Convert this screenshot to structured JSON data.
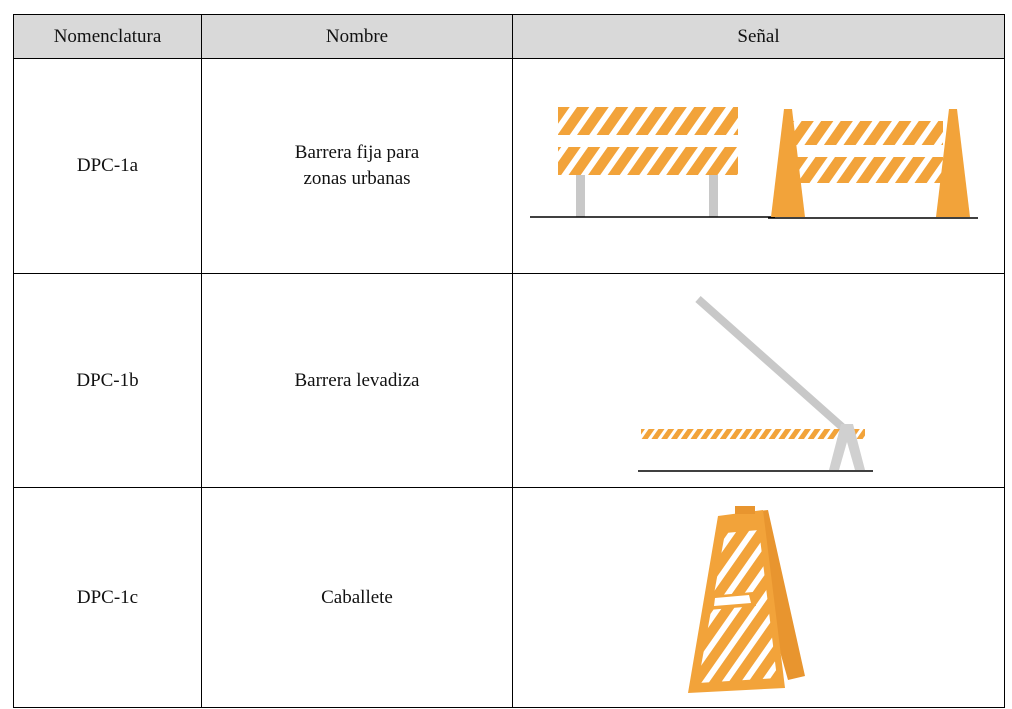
{
  "table": {
    "headers": [
      "Nomenclatura",
      "Nombre",
      "Señal"
    ],
    "rows": [
      {
        "code": "DPC-1a",
        "name": [
          "Barrera fija para",
          "zonas urbanas"
        ]
      },
      {
        "code": "DPC-1b",
        "name": [
          "Barrera levadiza"
        ]
      },
      {
        "code": "DPC-1c",
        "name": [
          "Caballete"
        ]
      }
    ]
  }
}
